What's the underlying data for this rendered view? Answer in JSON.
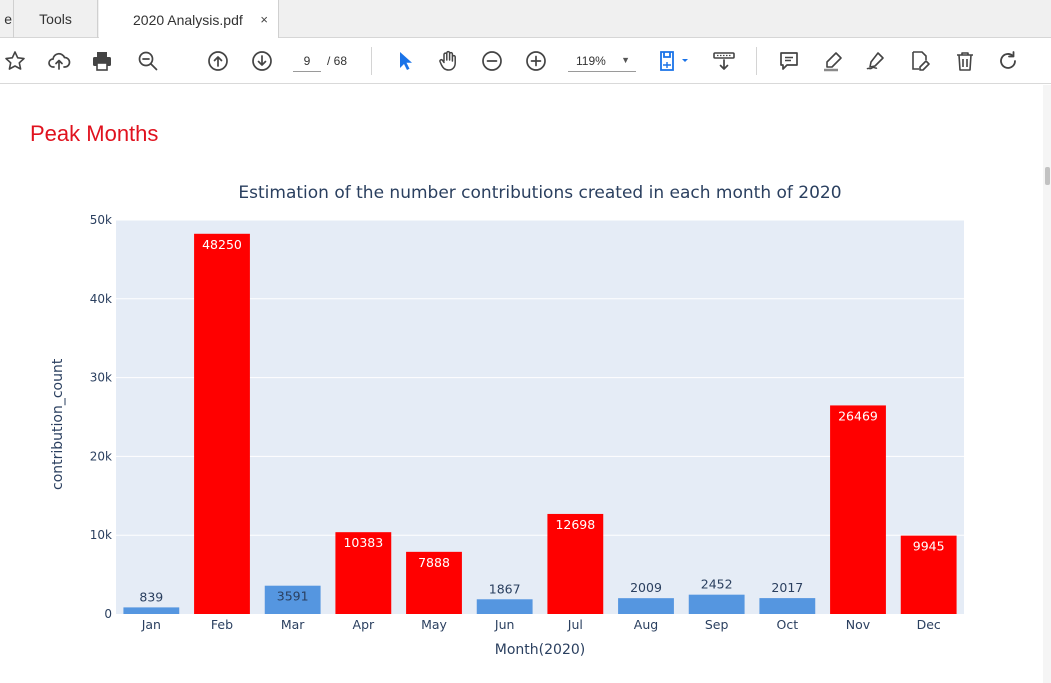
{
  "tabs": {
    "edge_label": "e",
    "tools_label": "Tools",
    "doc_label": "2020 Analysis.pdf",
    "close_glyph": "×"
  },
  "toolbar": {
    "icons": [
      "star-icon",
      "cloud-upload-icon",
      "print-icon",
      "zoom-search-icon",
      "page-up-icon",
      "page-down-icon",
      "select-cursor-icon",
      "hand-pan-icon",
      "zoom-out-icon",
      "zoom-in-icon",
      "fit-page-icon",
      "scroll-mode-icon",
      "comment-icon",
      "highlight-icon",
      "sign-icon",
      "edit-pdf-icon",
      "delete-icon",
      "rotate-icon"
    ],
    "page_current": "9",
    "page_total": "/ 68",
    "zoom_value": "119%"
  },
  "document": {
    "heading": "Peak Months"
  },
  "colors": {
    "heading": "#e0121e",
    "accent_blue": "#1a73e8",
    "bar_peak": "#ff0000",
    "bar_normal": "#5596e0",
    "plot_bg": "#e5ecf6",
    "axis_text": "#2a3f5f"
  },
  "chart_data": {
    "type": "bar",
    "title": "Estimation of the number contributions created in each month of 2020",
    "xlabel": "Month(2020)",
    "ylabel": "contribution_count",
    "categories": [
      "Jan",
      "Feb",
      "Mar",
      "Apr",
      "May",
      "Jun",
      "Jul",
      "Aug",
      "Sep",
      "Oct",
      "Nov",
      "Dec"
    ],
    "values": [
      839,
      48250,
      3591,
      10383,
      7888,
      1867,
      12698,
      2009,
      2452,
      2017,
      26469,
      9945
    ],
    "peak": [
      false,
      true,
      false,
      true,
      true,
      false,
      true,
      false,
      false,
      false,
      true,
      true
    ],
    "ylim": [
      0,
      50000
    ],
    "yticks": [
      0,
      10000,
      20000,
      30000,
      40000,
      50000
    ],
    "ytick_labels": [
      "0",
      "10k",
      "20k",
      "30k",
      "40k",
      "50k"
    ],
    "grid": true,
    "legend": "none"
  }
}
